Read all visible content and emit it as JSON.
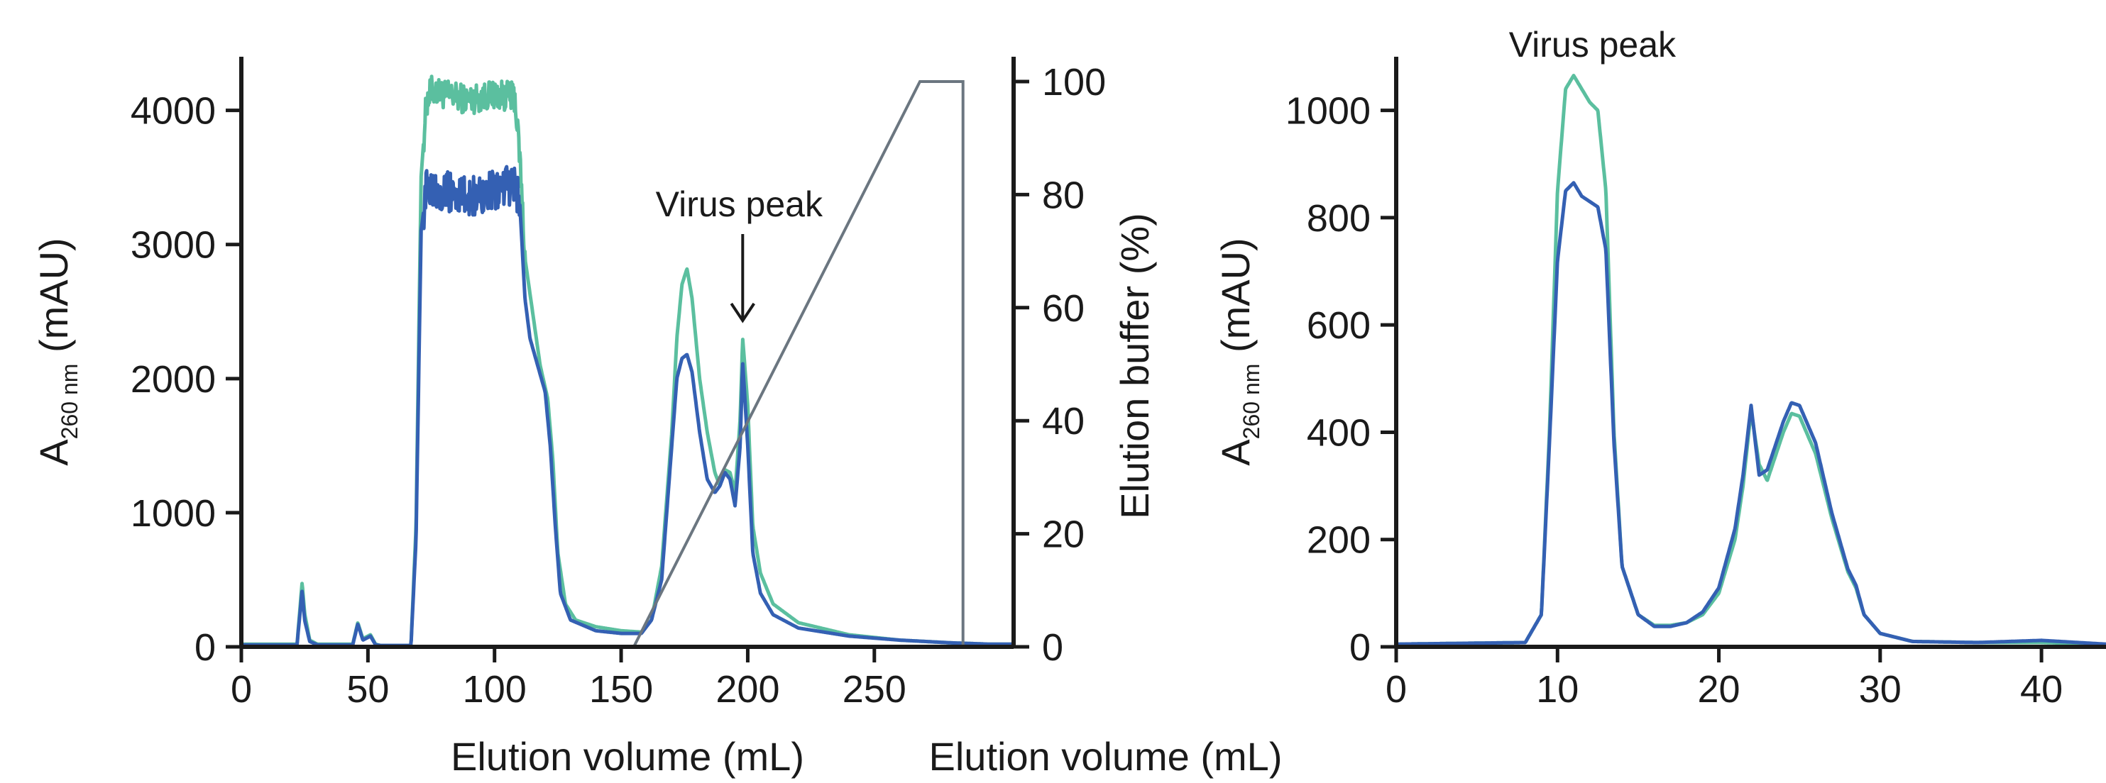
{
  "colors": {
    "series_a": "#5bbf9f",
    "series_b": "#3460b3",
    "gradient": "#6b7680",
    "axis": "#1a1a1a"
  },
  "chart_data": [
    {
      "type": "line",
      "title": "",
      "xlabel": "Elution volume (mL)",
      "ylabel": {
        "main": "A",
        "sub": "260 nm",
        "unit": "(mAU)"
      },
      "y2label": "Elution buffer (%)",
      "xlim": [
        0,
        305
      ],
      "ylim": [
        0,
        4400
      ],
      "y2lim": [
        0,
        100
      ],
      "xticks": [
        0,
        50,
        100,
        150,
        200,
        250
      ],
      "yticks": [
        0,
        1000,
        2000,
        3000,
        4000
      ],
      "y2ticks": [
        0,
        20,
        40,
        60,
        80,
        100
      ],
      "grid": false,
      "legend": "none",
      "annotation": {
        "text": "Virus peak",
        "x": 198,
        "y": 2350
      },
      "series": [
        {
          "color_key": "series_a",
          "x": [
            0,
            22,
            24,
            25,
            27,
            30,
            44,
            46,
            48,
            51,
            53,
            55,
            67,
            69,
            71,
            73,
            75,
            80,
            90,
            100,
            108,
            110,
            112,
            115,
            118,
            121,
            123,
            125,
            128,
            132,
            140,
            150,
            158,
            162,
            166,
            170,
            172,
            174,
            176,
            178,
            181,
            184,
            187,
            189,
            191,
            193,
            195,
            197,
            198,
            200,
            202,
            205,
            210,
            220,
            240,
            260,
            280,
            295,
            305
          ],
          "y": [
            20,
            20,
            480,
            250,
            50,
            20,
            20,
            180,
            60,
            90,
            20,
            10,
            10,
            900,
            3500,
            4050,
            4150,
            4120,
            4080,
            4120,
            4100,
            3650,
            2900,
            2500,
            2100,
            1850,
            1400,
            700,
            320,
            200,
            150,
            120,
            110,
            200,
            600,
            1600,
            2300,
            2700,
            2820,
            2600,
            2000,
            1600,
            1300,
            1200,
            1320,
            1300,
            1150,
            1700,
            2300,
            1800,
            900,
            550,
            320,
            180,
            90,
            50,
            30,
            20,
            20
          ],
          "noise": [
            [
              72,
              112,
              110
            ]
          ]
        },
        {
          "color_key": "series_b",
          "x": [
            0,
            22,
            24,
            25,
            27,
            30,
            44,
            46,
            48,
            51,
            53,
            55,
            67,
            69,
            71,
            73,
            75,
            80,
            90,
            100,
            108,
            110,
            112,
            114,
            117,
            120,
            122,
            124,
            126,
            130,
            140,
            150,
            158,
            162,
            166,
            170,
            172,
            174,
            176,
            178,
            181,
            184,
            187,
            189,
            191,
            193,
            195,
            197,
            198,
            200,
            202,
            205,
            210,
            220,
            240,
            260,
            280,
            295,
            305
          ],
          "y": [
            15,
            15,
            420,
            200,
            40,
            15,
            15,
            170,
            50,
            80,
            15,
            10,
            10,
            800,
            3100,
            3400,
            3450,
            3400,
            3350,
            3400,
            3450,
            3300,
            2600,
            2300,
            2100,
            1900,
            1500,
            900,
            400,
            200,
            120,
            100,
            100,
            200,
            500,
            1500,
            2000,
            2150,
            2180,
            2050,
            1600,
            1250,
            1150,
            1200,
            1300,
            1250,
            1050,
            1500,
            2120,
            1500,
            700,
            400,
            240,
            140,
            80,
            50,
            30,
            20,
            20
          ],
          "noise": [
            [
              72,
              110,
              150
            ]
          ]
        },
        {
          "axis": "y2",
          "color_key": "gradient",
          "x": [
            0,
            155,
            268,
            285,
            285,
            305
          ],
          "y": [
            0,
            0,
            100,
            100,
            0,
            0
          ]
        }
      ]
    },
    {
      "type": "line",
      "title": "",
      "xlabel": "Elution volume (mL)",
      "ylabel": {
        "main": "A",
        "sub": "260 nm",
        "unit": "(mAU)"
      },
      "xlim": [
        0,
        44
      ],
      "ylim": [
        0,
        1100
      ],
      "xticks": [
        0,
        10,
        20,
        30,
        40
      ],
      "yticks": [
        0,
        200,
        400,
        600,
        800,
        1000
      ],
      "grid": false,
      "legend": "none",
      "annotation": {
        "text": "Virus peak",
        "x": 11.5,
        "y": 1080
      },
      "series": [
        {
          "color_key": "series_a",
          "x": [
            0,
            8,
            9,
            9.5,
            10,
            10.5,
            11,
            11.5,
            12,
            12.5,
            13,
            13.5,
            14,
            15,
            16,
            17,
            18,
            19,
            20,
            21,
            21.5,
            22,
            22.5,
            23,
            24,
            24.5,
            25,
            26,
            27,
            28,
            28.5,
            29,
            30,
            32,
            36,
            40,
            44
          ],
          "y": [
            5,
            8,
            60,
            400,
            850,
            1040,
            1065,
            1040,
            1015,
            1000,
            850,
            400,
            150,
            60,
            40,
            40,
            45,
            60,
            100,
            200,
            300,
            440,
            340,
            310,
            400,
            435,
            430,
            360,
            240,
            140,
            110,
            60,
            25,
            10,
            8,
            8,
            5
          ]
        },
        {
          "color_key": "series_b",
          "x": [
            0,
            8,
            9,
            9.5,
            10,
            10.5,
            11,
            11.5,
            12,
            12.5,
            13,
            13.5,
            14,
            15,
            16,
            17,
            18,
            19,
            20,
            21,
            21.5,
            22,
            22.5,
            23,
            24,
            24.5,
            25,
            26,
            27,
            28,
            28.5,
            29,
            30,
            32,
            36,
            40,
            44
          ],
          "y": [
            5,
            8,
            60,
            380,
            720,
            850,
            865,
            840,
            830,
            820,
            740,
            380,
            150,
            60,
            38,
            38,
            45,
            65,
            110,
            220,
            320,
            450,
            320,
            330,
            420,
            455,
            450,
            380,
            250,
            145,
            115,
            60,
            25,
            10,
            8,
            12,
            5
          ]
        }
      ]
    }
  ]
}
